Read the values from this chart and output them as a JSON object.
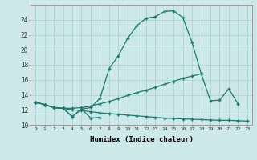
{
  "xlabel": "Humidex (Indice chaleur)",
  "xlim": [
    -0.5,
    23.5
  ],
  "ylim": [
    10,
    26
  ],
  "background_color": "#cce8e8",
  "grid_color": "#aed4d4",
  "line_color": "#1a7a6e",
  "xticks": [
    0,
    1,
    2,
    3,
    4,
    5,
    6,
    7,
    8,
    9,
    10,
    11,
    12,
    13,
    14,
    15,
    16,
    17,
    18,
    19,
    20,
    21,
    22,
    23
  ],
  "yticks": [
    10,
    12,
    14,
    16,
    18,
    20,
    22,
    24
  ],
  "series": {
    "line1_zigzag": {
      "x": [
        0,
        1,
        2,
        3,
        4,
        5,
        6,
        7
      ],
      "y": [
        13.0,
        12.7,
        12.3,
        12.2,
        11.1,
        12.1,
        10.9,
        11.0
      ]
    },
    "line2_main": {
      "x": [
        0,
        1,
        2,
        3,
        4,
        5,
        6,
        7,
        8,
        9,
        10,
        11,
        12,
        13,
        14,
        15,
        16,
        17,
        18
      ],
      "y": [
        13.0,
        12.7,
        12.3,
        12.2,
        11.1,
        12.1,
        12.3,
        13.5,
        17.5,
        19.2,
        21.5,
        23.2,
        24.2,
        24.4,
        25.1,
        25.2,
        24.3,
        21.0,
        16.8
      ]
    },
    "line3_mid": {
      "x": [
        0,
        1,
        2,
        3,
        4,
        5,
        6,
        7,
        8,
        9,
        10,
        11,
        12,
        13,
        14,
        15,
        16,
        17,
        18,
        19,
        20,
        21,
        22
      ],
      "y": [
        13.0,
        12.7,
        12.3,
        12.2,
        12.2,
        12.3,
        12.5,
        12.8,
        13.1,
        13.5,
        13.9,
        14.3,
        14.6,
        15.0,
        15.4,
        15.8,
        16.2,
        16.5,
        16.8,
        13.2,
        13.3,
        14.8,
        12.8
      ]
    },
    "line4_flat": {
      "x": [
        0,
        1,
        2,
        3,
        4,
        5,
        6,
        7,
        8,
        9,
        10,
        11,
        12,
        13,
        14,
        15,
        16,
        17,
        18,
        19,
        20,
        21,
        22,
        23
      ],
      "y": [
        13.0,
        12.7,
        12.3,
        12.2,
        12.0,
        11.9,
        11.75,
        11.6,
        11.5,
        11.4,
        11.3,
        11.2,
        11.1,
        11.0,
        10.9,
        10.85,
        10.8,
        10.75,
        10.7,
        10.65,
        10.6,
        10.6,
        10.55,
        10.5
      ]
    }
  }
}
